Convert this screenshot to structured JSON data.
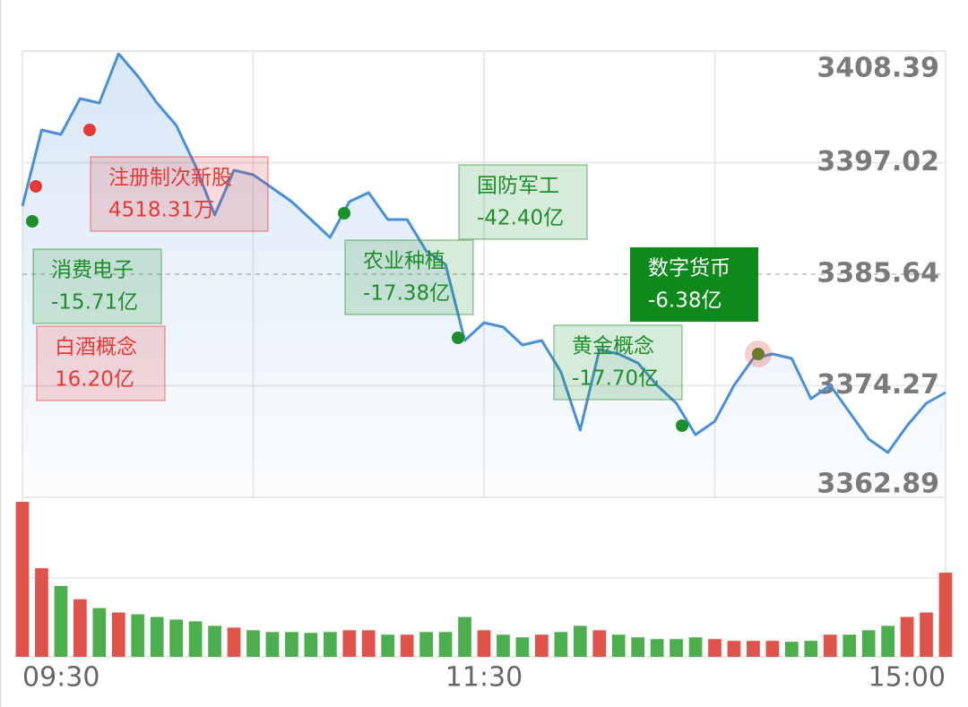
{
  "chart_data": {
    "type": "line",
    "categories": [
      "09:30",
      null,
      null,
      null,
      null,
      null,
      null,
      null,
      null,
      null,
      null,
      null,
      null,
      null,
      null,
      null,
      null,
      null,
      null,
      null,
      null,
      null,
      null,
      null,
      "11:30",
      null,
      null,
      null,
      null,
      null,
      null,
      null,
      null,
      null,
      null,
      null,
      null,
      null,
      null,
      null,
      null,
      null,
      null,
      null,
      null,
      null,
      null,
      null,
      "15:00"
    ],
    "values": [
      3392.58,
      3400.35,
      3399.89,
      3403.55,
      3403.09,
      3408.12,
      3405.83,
      3403.09,
      3400.81,
      3396.69,
      3391.67,
      3396.24,
      3395.78,
      3394.41,
      3393.04,
      3391.21,
      3389.39,
      3393.04,
      3393.95,
      3391.21,
      3391.21,
      3388.01,
      3386.64,
      3378.88,
      3380.7,
      3380.25,
      3378.42,
      3378.88,
      3375.68,
      3369.74,
      3377.96,
      3377.51,
      3376.59,
      3374.31,
      3372.48,
      3369.28,
      3370.65,
      3374.31,
      3377.05,
      3377.51,
      3377.05,
      3372.94,
      3374.31,
      3371.57,
      3368.83,
      3367.46,
      3370.2,
      3372.48,
      3373.58
    ],
    "color": "#4a8fd6",
    "ylim": [
      3362.89,
      3408.39
    ],
    "yticks": [
      3408.39,
      3397.02,
      3385.64,
      3374.27,
      3362.89
    ],
    "grid": true,
    "volume": {
      "values": [
        175,
        100,
        80,
        65,
        55,
        50,
        48,
        45,
        42,
        40,
        35,
        33,
        30,
        28,
        28,
        27,
        28,
        30,
        30,
        25,
        25,
        28,
        28,
        45,
        30,
        25,
        22,
        25,
        28,
        35,
        30,
        25,
        22,
        20,
        20,
        22,
        20,
        18,
        18,
        18,
        17,
        18,
        25,
        25,
        30,
        35,
        45,
        50,
        95
      ],
      "up_color": "#e0534a",
      "down_color": "#4cae4c"
    },
    "events": [
      {
        "name": "注册制次新股",
        "amount": "4518.31万",
        "color": "#e53935"
      },
      {
        "name": "消费电子",
        "amount": "-15.71亿",
        "color": "#1e8e2a"
      },
      {
        "name": "白酒概念",
        "amount": "16.20亿",
        "color": "#e53935"
      },
      {
        "name": "农业种植",
        "amount": "-17.38亿",
        "color": "#1e8e2a"
      },
      {
        "name": "国防军工",
        "amount": "-42.40亿",
        "color": "#1e8e2a"
      },
      {
        "name": "黄金概念",
        "amount": "-17.70亿",
        "color": "#1e8e2a"
      },
      {
        "name": "数字货币",
        "amount": "-6.38亿",
        "color": "#1e8e2a"
      }
    ]
  }
}
